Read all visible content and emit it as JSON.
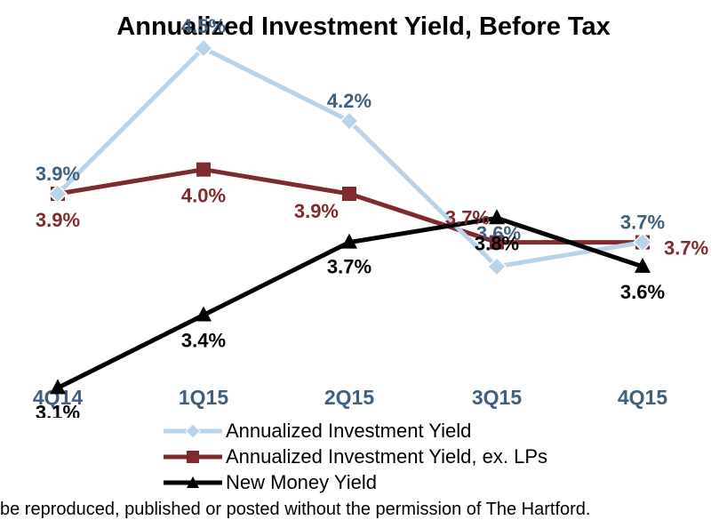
{
  "chart_data": {
    "type": "line",
    "title": "Annualized Investment Yield, Before Tax",
    "categories": [
      "4Q14",
      "1Q15",
      "2Q15",
      "3Q15",
      "4Q15"
    ],
    "series": [
      {
        "name": "Annualized Investment Yield",
        "color": "#B7D4EA",
        "marker": "diamond",
        "values": [
          3.9,
          4.5,
          4.2,
          3.6,
          3.7
        ],
        "labels": [
          "3.9%",
          "4.5%",
          "4.2%",
          "3.6%",
          "3.7%"
        ],
        "label_color": "#3F5F7E"
      },
      {
        "name": "Annualized Investment Yield, ex. LPs",
        "color": "#7F2A2E",
        "marker": "square",
        "values": [
          3.9,
          4.0,
          3.9,
          3.7,
          3.7
        ],
        "labels": [
          "3.9%",
          "4.0%",
          "3.9%",
          "3.7%",
          "3.7%"
        ],
        "label_color": "#7F2A2E"
      },
      {
        "name": "New Money Yield",
        "color": "#000000",
        "marker": "triangle",
        "values": [
          3.1,
          3.4,
          3.7,
          3.8,
          3.6
        ],
        "labels": [
          "3.1%",
          "3.4%",
          "3.7%",
          "3.8%",
          "3.6%"
        ],
        "label_color": "#000000"
      }
    ],
    "legend_position": "bottom",
    "grid": false
  },
  "footnote": "be reproduced, published or posted without the permission of The Hartford."
}
